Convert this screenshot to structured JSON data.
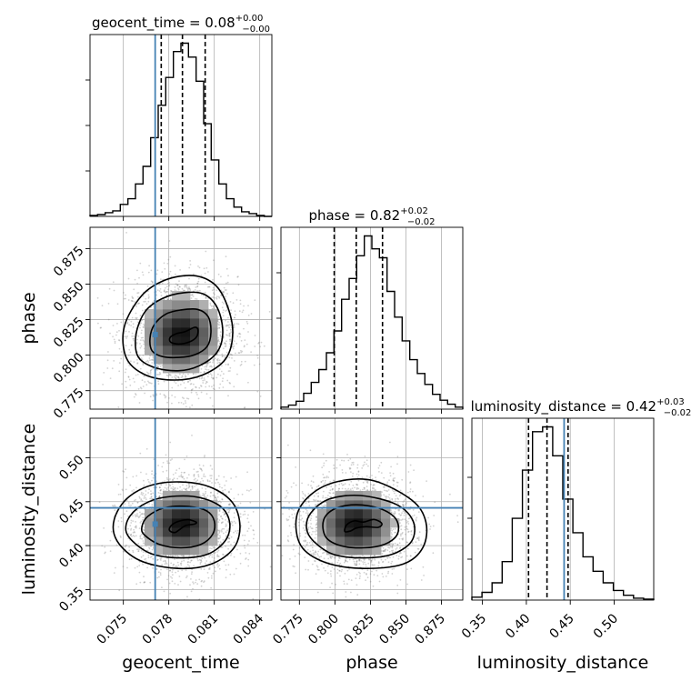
{
  "colors": {
    "truth": "#4682b4",
    "hist": "#000000",
    "grid": "#b0b0b0",
    "scatter": "#7f7f7f"
  },
  "chart_data": {
    "type": "corner",
    "grid": true,
    "parameters": [
      {
        "name": "geocent_time",
        "label": "geocent_time",
        "title": "geocent_time = 0.08",
        "title_main": "geocent_time = 0.08",
        "title_sup": "+0.00",
        "title_sub": "−0.00",
        "range": [
          0.0728,
          0.0848
        ],
        "ticks": [
          0.075,
          0.078,
          0.081,
          0.084
        ],
        "tick_labels": [
          "0.075",
          "0.078",
          "0.081",
          "0.084"
        ],
        "truth": 0.0771,
        "quantiles": [
          0.0775,
          0.0789,
          0.0804
        ],
        "hist_bins": [
          0.0728,
          0.0848
        ],
        "hist": [
          1,
          2,
          4,
          6,
          13,
          19,
          35,
          54,
          85,
          120,
          150,
          178,
          187,
          172,
          146,
          100,
          61,
          35,
          19,
          10,
          5,
          3,
          1,
          0
        ]
      },
      {
        "name": "phase",
        "label": "phase",
        "title": "phase = 0.82",
        "title_main": "phase = 0.82",
        "title_sup": "+0.02",
        "title_sub": "−0.02",
        "range": [
          0.762,
          0.89
        ],
        "ticks": [
          0.775,
          0.8,
          0.825,
          0.85,
          0.875
        ],
        "tick_labels": [
          "0.775",
          "0.800",
          "0.825",
          "0.850",
          "0.875"
        ],
        "truth": null,
        "quantiles": [
          0.7995,
          0.815,
          0.8335
        ],
        "hist_bins": [
          0.762,
          0.89
        ],
        "hist": [
          2,
          4,
          8,
          16,
          27,
          40,
          57,
          79,
          111,
          132,
          155,
          175,
          162,
          153,
          119,
          93,
          69,
          50,
          36,
          25,
          15,
          9,
          5,
          2
        ]
      },
      {
        "name": "luminosity_distance",
        "label": "luminosity_distance",
        "title": "luminosity_distance = 0.42",
        "title_main": "luminosity_distance = 0.42",
        "title_sup": "+0.03",
        "title_sub": "−0.02",
        "range": [
          0.338,
          0.545
        ],
        "ticks": [
          0.35,
          0.4,
          0.45,
          0.5
        ],
        "tick_labels": [
          "0.35",
          "0.40",
          "0.45",
          "0.50"
        ],
        "truth": 0.443,
        "quantiles": [
          0.4025,
          0.4235,
          0.4475
        ],
        "hist_bins": [
          0.338,
          0.545
        ],
        "hist": [
          3,
          8,
          18,
          40,
          85,
          135,
          175,
          180,
          150,
          105,
          70,
          45,
          30,
          18,
          10,
          5,
          2,
          1
        ]
      }
    ],
    "pairs": [
      {
        "x": "geocent_time",
        "y": "phase",
        "mean": [
          0.07885,
          0.8145
        ],
        "sigma": [
          0.0016,
          0.0175
        ],
        "contours": [
          [
            [
              0.07812,
              0.8092
            ],
            [
              0.07866,
              0.8078
            ],
            [
              0.07938,
              0.8094
            ],
            [
              0.07984,
              0.813
            ],
            [
              0.07992,
              0.818
            ],
            [
              0.0797,
              0.8196
            ],
            [
              0.07908,
              0.8166
            ],
            [
              0.07846,
              0.815
            ],
            [
              0.07808,
              0.8124
            ]
          ],
          [
            [
              0.0769,
              0.803
            ],
            [
              0.0776,
              0.799
            ],
            [
              0.0787,
              0.7984
            ],
            [
              0.07974,
              0.8004
            ],
            [
              0.08052,
              0.806
            ],
            [
              0.08078,
              0.816
            ],
            [
              0.0806,
              0.827
            ],
            [
              0.0799,
              0.8322
            ],
            [
              0.0788,
              0.8318
            ],
            [
              0.07782,
              0.829
            ],
            [
              0.07704,
              0.8214
            ],
            [
              0.07676,
              0.812
            ]
          ],
          [
            [
              0.07596,
              0.7992
            ],
            [
              0.077,
              0.7915
            ],
            [
              0.0786,
              0.789
            ],
            [
              0.08,
              0.7925
            ],
            [
              0.08118,
              0.802
            ],
            [
              0.08156,
              0.816
            ],
            [
              0.08122,
              0.833
            ],
            [
              0.0803,
              0.843
            ],
            [
              0.079,
              0.844
            ],
            [
              0.0776,
              0.84
            ],
            [
              0.07646,
              0.831
            ],
            [
              0.07584,
              0.815
            ]
          ],
          [
            [
              0.0752,
              0.798
            ],
            [
              0.07648,
              0.786
            ],
            [
              0.0784,
              0.7825
            ],
            [
              0.08022,
              0.786
            ],
            [
              0.08176,
              0.7975
            ],
            [
              0.08222,
              0.816
            ],
            [
              0.08182,
              0.836
            ],
            [
              0.081,
              0.85
            ],
            [
              0.0796,
              0.856
            ],
            [
              0.0778,
              0.853
            ],
            [
              0.07622,
              0.842
            ],
            [
              0.07506,
              0.82
            ]
          ]
        ]
      },
      {
        "x": "geocent_time",
        "y": "luminosity_distance",
        "mean": [
          0.07885,
          0.4245
        ],
        "sigma": [
          0.0016,
          0.0245
        ],
        "contours": [
          [
            [
              0.07808,
              0.4166
            ],
            [
              0.07842,
              0.415
            ],
            [
              0.07876,
              0.4188
            ],
            [
              0.07914,
              0.423
            ],
            [
              0.0797,
              0.4245
            ],
            [
              0.0798,
              0.4268
            ],
            [
              0.0793,
              0.4295
            ],
            [
              0.07882,
              0.4285
            ],
            [
              0.07838,
              0.4258
            ],
            [
              0.07806,
              0.4205
            ]
          ],
          [
            [
              0.0764,
              0.412
            ],
            [
              0.0774,
              0.4012
            ],
            [
              0.0788,
              0.3975
            ],
            [
              0.0801,
              0.4012
            ],
            [
              0.0809,
              0.413
            ],
            [
              0.081,
              0.428
            ],
            [
              0.0805,
              0.4395
            ],
            [
              0.0793,
              0.4445
            ],
            [
              0.0777,
              0.443
            ],
            [
              0.0766,
              0.433
            ],
            [
              0.07622,
              0.421
            ]
          ],
          [
            [
              0.0754,
              0.409
            ],
            [
              0.0768,
              0.391
            ],
            [
              0.0788,
              0.386
            ],
            [
              0.0806,
              0.3905
            ],
            [
              0.08178,
              0.407
            ],
            [
              0.082,
              0.428
            ],
            [
              0.0813,
              0.446
            ],
            [
              0.0796,
              0.456
            ],
            [
              0.0774,
              0.454
            ],
            [
              0.0759,
              0.442
            ],
            [
              0.0752,
              0.425
            ]
          ],
          [
            [
              0.0746,
              0.405
            ],
            [
              0.0761,
              0.383
            ],
            [
              0.0786,
              0.374
            ],
            [
              0.0808,
              0.379
            ],
            [
              0.08232,
              0.398
            ],
            [
              0.08268,
              0.426
            ],
            [
              0.082,
              0.453
            ],
            [
              0.0801,
              0.47
            ],
            [
              0.0774,
              0.471
            ],
            [
              0.0754,
              0.456
            ],
            [
              0.0744,
              0.43
            ]
          ]
        ]
      },
      {
        "x": "phase",
        "y": "luminosity_distance",
        "mean": [
          0.8145,
          0.4245
        ],
        "sigma": [
          0.0175,
          0.0245
        ],
        "contours": [
          [
            [
              0.807,
              0.416
            ],
            [
              0.8112,
              0.4168
            ],
            [
              0.815,
              0.42
            ],
            [
              0.822,
              0.4215
            ],
            [
              0.8305,
              0.4208
            ],
            [
              0.833,
              0.4252
            ],
            [
              0.8275,
              0.4298
            ],
            [
              0.82,
              0.4268
            ],
            [
              0.8135,
              0.4282
            ],
            [
              0.8082,
              0.4235
            ]
          ],
          [
            [
              0.7935,
              0.41
            ],
            [
              0.804,
              0.4
            ],
            [
              0.82,
              0.3975
            ],
            [
              0.835,
              0.4015
            ],
            [
              0.844,
              0.413
            ],
            [
              0.843,
              0.43
            ],
            [
              0.832,
              0.442
            ],
            [
              0.815,
              0.4465
            ],
            [
              0.8,
              0.442
            ],
            [
              0.792,
              0.429
            ]
          ],
          [
            [
              0.785,
              0.405
            ],
            [
              0.799,
              0.39
            ],
            [
              0.82,
              0.386
            ],
            [
              0.84,
              0.39
            ],
            [
              0.854,
              0.405
            ],
            [
              0.855,
              0.428
            ],
            [
              0.843,
              0.447
            ],
            [
              0.818,
              0.457
            ],
            [
              0.796,
              0.453
            ],
            [
              0.783,
              0.437
            ],
            [
              0.78,
              0.42
            ]
          ],
          [
            [
              0.776,
              0.4
            ],
            [
              0.793,
              0.381
            ],
            [
              0.82,
              0.374
            ],
            [
              0.848,
              0.379
            ],
            [
              0.862,
              0.398
            ],
            [
              0.864,
              0.427
            ],
            [
              0.854,
              0.452
            ],
            [
              0.827,
              0.474
            ],
            [
              0.802,
              0.473
            ],
            [
              0.783,
              0.458
            ],
            [
              0.773,
              0.433
            ]
          ]
        ]
      }
    ]
  }
}
